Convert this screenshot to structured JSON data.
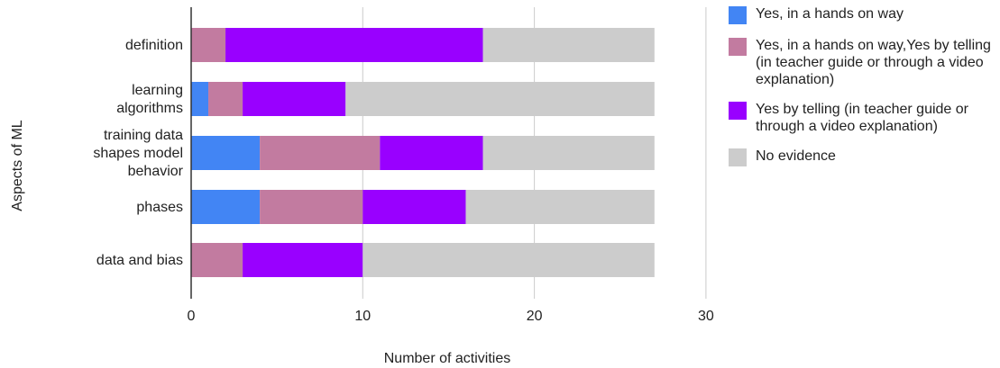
{
  "chart_data": {
    "type": "bar",
    "orientation": "horizontal",
    "stacked": true,
    "xlabel": "Number of activities",
    "ylabel": "Aspects of ML",
    "xlim": [
      0,
      30
    ],
    "x_ticks": [
      "0",
      "10",
      "20",
      "30"
    ],
    "categories": [
      "definition",
      "learning algorithms",
      "training data shapes model behavior",
      "phases",
      "data and bias"
    ],
    "series": [
      {
        "name": "Yes, in a hands on way",
        "color": "#4285f4",
        "values": [
          0,
          1,
          4,
          4,
          0
        ]
      },
      {
        "name": "Yes, in a hands on way,Yes by telling (in teacher guide or through a video explanation)",
        "color": "#c27ba0",
        "values": [
          2,
          2,
          7,
          6,
          3
        ]
      },
      {
        "name": "Yes by telling (in teacher guide or through a video explanation)",
        "color": "#9900ff",
        "values": [
          15,
          6,
          6,
          6,
          7
        ]
      },
      {
        "name": "No evidence",
        "color": "#cccccc",
        "values": [
          10,
          18,
          10,
          11,
          17
        ]
      }
    ],
    "grid": true,
    "legend_position": "right"
  }
}
